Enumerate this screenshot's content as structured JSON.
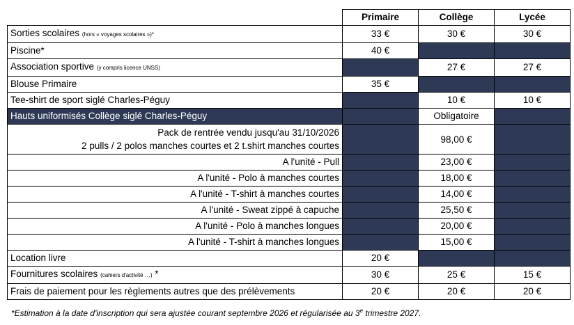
{
  "columns": [
    "Primaire",
    "Collège",
    "Lycée"
  ],
  "rows": [
    {
      "label": "Sorties scolaires",
      "note": "(hors « voyages scolaires »)*",
      "primaire": "33 €",
      "college": "30 €",
      "lycee": "30 €"
    },
    {
      "label": "Piscine*",
      "primaire": "40 €",
      "college": "",
      "lycee": ""
    },
    {
      "label": "Association sportive",
      "note": "(y compris licence UNSS)",
      "primaire": "",
      "college": "27 €",
      "lycee": "27 €"
    },
    {
      "label": "Blouse Primaire",
      "primaire": "35 €",
      "college": "",
      "lycee": ""
    },
    {
      "label": "Tee-shirt de sport siglé Charles-Péguy",
      "primaire": "",
      "college": "10 €",
      "lycee": "10 €"
    }
  ],
  "uniform": {
    "label": "Hauts uniformisés Collège siglé Charles-Péguy",
    "college": "Obligatoire",
    "pack_line1": "Pack de rentrée vendu jusqu'au 31/10/2026",
    "pack_line2": "2 pulls / 2 polos manches courtes et 2 t.shirt manches courtes",
    "pack_price": "98,00 €",
    "items": [
      {
        "label": "A l'unité - Pull",
        "price": "23,00 €"
      },
      {
        "label": "A l'unité - Polo  à manches courtes",
        "price": "18,00 €"
      },
      {
        "label": "A l'unité - T-shirt à manches courtes",
        "price": "14,00 €"
      },
      {
        "label": "A l'unité - Sweat zippé à capuche",
        "price": "25,50 €"
      },
      {
        "label": "A l'unité - Polo  à manches longues",
        "price": "20,00 €"
      },
      {
        "label": "A l'unité - T-shirt à manches longues",
        "price": "15,00 €"
      }
    ]
  },
  "bottom_rows": [
    {
      "label": "Location livre",
      "primaire": "20 €",
      "college": "",
      "lycee": ""
    },
    {
      "label": "Fournitures scolaires",
      "note": "(cahiers d'activité …)",
      "suffix": " *",
      "primaire": "30 €",
      "college": "25 €",
      "lycee": "15 €"
    },
    {
      "label": "Frais de paiement pour les règlements autres  que des prélèvements",
      "primaire": "20 €",
      "college": "20 €",
      "lycee": "20 €"
    }
  ],
  "footnote": {
    "before": "*Estimation à la date d'inscription qui sera ajustée courant septembre 2026 et régularisée au 3",
    "sup": "e",
    "after": " trimestre 2027."
  },
  "colors": {
    "dark_cell": "#2e3a55",
    "border": "#000000"
  }
}
